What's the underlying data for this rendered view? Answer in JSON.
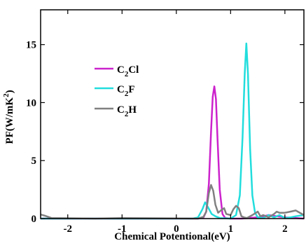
{
  "chart_data": {
    "type": "line",
    "title": "",
    "xlabel": "Chemical Potentional(eV)",
    "ylabel": "PF(W/mK²)",
    "ylabel_parts": {
      "main": "PF(W/mK",
      "sup": "2",
      "end": ")"
    },
    "xlim": [
      -2.5,
      2.35
    ],
    "ylim": [
      0,
      18
    ],
    "xticks": [
      -2,
      -1,
      0,
      1,
      2
    ],
    "yticks": [
      0,
      5,
      10,
      15
    ],
    "xtick_labels": [
      "-2",
      "-1",
      "0",
      "1",
      "2"
    ],
    "ytick_labels": [
      "0",
      "5",
      "10",
      "15"
    ],
    "grid": false,
    "legend_position": "upper-left",
    "series": [
      {
        "name": "C₂Cl",
        "label_parts": {
          "base": "C",
          "sub": "2",
          "rest": "Cl"
        },
        "color": "#cc22cc",
        "x": [
          -2.5,
          -1.0,
          0.4,
          0.5,
          0.55,
          0.6,
          0.64,
          0.67,
          0.7,
          0.73,
          0.76,
          0.8,
          0.85,
          0.9,
          1.0,
          1.2,
          1.5,
          1.7,
          1.85,
          2.0,
          2.2,
          2.35
        ],
        "y": [
          0,
          0,
          0,
          0.1,
          0.6,
          3.0,
          7.5,
          10.5,
          11.4,
          10.3,
          6.8,
          2.5,
          0.4,
          0.05,
          0,
          0,
          0.1,
          0.3,
          0.2,
          0.1,
          0.05,
          0
        ]
      },
      {
        "name": "C₂F",
        "label_parts": {
          "base": "C",
          "sub": "2",
          "rest": "F"
        },
        "color": "#22dddd",
        "x": [
          -2.5,
          -1.0,
          0.3,
          0.4,
          0.48,
          0.53,
          0.58,
          0.65,
          0.72,
          0.8,
          1.0,
          1.1,
          1.17,
          1.22,
          1.26,
          1.29,
          1.32,
          1.36,
          1.4,
          1.45,
          1.5,
          1.6,
          1.7,
          1.8,
          1.9,
          2.0,
          2.1,
          2.2,
          2.35
        ],
        "y": [
          0,
          0,
          0,
          0.1,
          0.8,
          1.4,
          1.0,
          0.4,
          0.2,
          0.05,
          0,
          0.3,
          2.0,
          7.0,
          12.5,
          15.1,
          12.5,
          6.0,
          2.0,
          0.5,
          0.1,
          0.05,
          0.3,
          0.1,
          0.3,
          0.05,
          0.1,
          0.2,
          0.3
        ]
      },
      {
        "name": "C₂H",
        "label_parts": {
          "base": "C",
          "sub": "2",
          "rest": "H"
        },
        "color": "#808080",
        "x": [
          -2.5,
          -2.42,
          -2.3,
          -1.5,
          -1.0,
          0.4,
          0.5,
          0.55,
          0.6,
          0.64,
          0.68,
          0.72,
          0.77,
          0.82,
          0.88,
          0.92,
          1.0,
          1.05,
          1.1,
          1.15,
          1.2,
          1.25,
          1.3,
          1.4,
          1.5,
          1.55,
          1.6,
          1.7,
          1.8,
          1.85,
          1.9,
          2.0,
          2.1,
          2.2,
          2.35
        ],
        "y": [
          0.35,
          0.25,
          0.05,
          0,
          0.05,
          0,
          0.15,
          0.6,
          2.2,
          2.9,
          2.4,
          1.2,
          0.5,
          0.7,
          0.9,
          0.4,
          0.3,
          0.8,
          1.1,
          0.9,
          0.2,
          0.1,
          0.05,
          0.3,
          0.6,
          0.2,
          0.3,
          0.1,
          0.4,
          0.6,
          0.5,
          0.5,
          0.6,
          0.7,
          0.3
        ]
      }
    ]
  }
}
